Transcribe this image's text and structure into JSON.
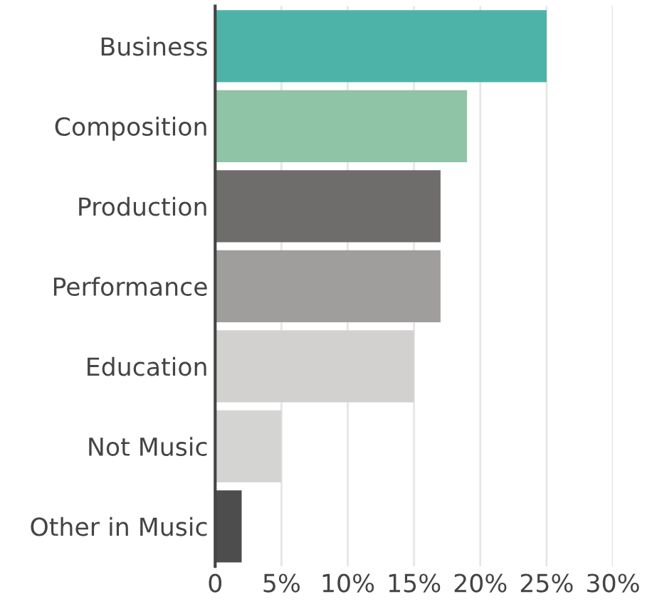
{
  "chart_data": {
    "type": "bar",
    "orientation": "horizontal",
    "categories": [
      "Business",
      "Composition",
      "Production",
      "Performance",
      "Education",
      "Not Music",
      "Other in Music"
    ],
    "values": [
      25,
      19,
      17,
      17,
      15,
      5,
      2
    ],
    "colors": [
      "#4db3a9",
      "#8fc4a6",
      "#6f6d6b",
      "#a09e9d",
      "#d3d1d0",
      "#d4d4d3",
      "#4d4d4d"
    ],
    "xlim": [
      0,
      30
    ],
    "xticks": [
      0,
      {
        "value": 5,
        "label": "5%"
      },
      {
        "value": 10,
        "label": "10%"
      },
      {
        "value": 15,
        "label": "15%"
      },
      {
        "value": 20,
        "label": "20%"
      },
      {
        "value": 25,
        "label": "25%"
      },
      {
        "value": 30,
        "label": "30%"
      }
    ],
    "grid": "x"
  }
}
